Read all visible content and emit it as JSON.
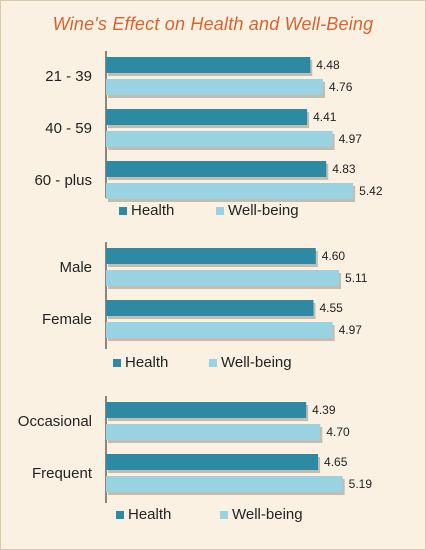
{
  "title": "Wine's Effect on Health and Well-Being",
  "colors": {
    "health": "#2e8aa3",
    "wellbeing": "#99d2e0",
    "axis": "#1a1a1a",
    "text": "#222222",
    "title": "#d9632e",
    "background": "#fbf1e3"
  },
  "chart_data": [
    {
      "type": "bar",
      "orientation": "horizontal",
      "categories": [
        "21 - 39",
        "40 - 59",
        "60 - plus"
      ],
      "series": [
        {
          "name": "Health",
          "values": [
            4.48,
            4.41,
            4.83
          ]
        },
        {
          "name": "Well-being",
          "values": [
            4.76,
            4.97,
            5.42
          ]
        }
      ],
      "legend": "bottom",
      "data_labels": true
    },
    {
      "type": "bar",
      "orientation": "horizontal",
      "categories": [
        "Male",
        "Female"
      ],
      "series": [
        {
          "name": "Health",
          "values": [
            4.6,
            4.55
          ]
        },
        {
          "name": "Well-being",
          "values": [
            5.11,
            4.97
          ]
        }
      ],
      "legend": "bottom",
      "data_labels": true
    },
    {
      "type": "bar",
      "orientation": "horizontal",
      "categories": [
        "Occasional",
        "Frequent"
      ],
      "series": [
        {
          "name": "Health",
          "values": [
            4.39,
            4.65
          ]
        },
        {
          "name": "Well-being",
          "values": [
            4.7,
            5.19
          ]
        }
      ],
      "legend": "bottom",
      "data_labels": true
    }
  ]
}
